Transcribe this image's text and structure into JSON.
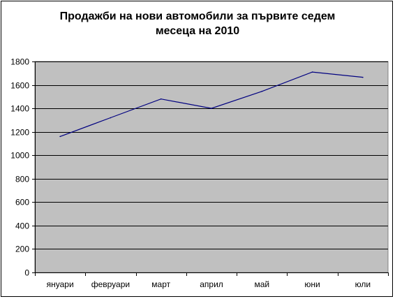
{
  "chart_data": {
    "type": "line",
    "title_lines": [
      "Продажби на нови автомобили за първите седем",
      "месеца на 2010"
    ],
    "categories": [
      "януари",
      "февруари",
      "март",
      "април",
      "май",
      "юни",
      "юли"
    ],
    "series": [
      {
        "values": [
          1160,
          1320,
          1480,
          1400,
          1545,
          1710,
          1665
        ]
      }
    ],
    "ylim": [
      0,
      1800
    ],
    "yticks": [
      0,
      200,
      400,
      600,
      800,
      1000,
      1200,
      1400,
      1600,
      1800
    ],
    "grid": true,
    "legend": "none",
    "colors": {
      "plot_background": "#c0c0c0",
      "line": "#000080",
      "gridline": "#000000"
    }
  }
}
